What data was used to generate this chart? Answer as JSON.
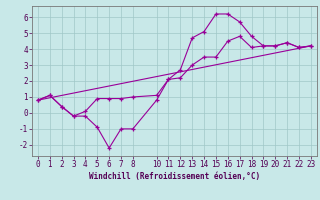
{
  "background_color": "#c8e8e8",
  "grid_color": "#a0c8c8",
  "line_color": "#990099",
  "spine_color": "#777777",
  "xlim": [
    -0.5,
    23.5
  ],
  "ylim": [
    -2.7,
    6.7
  ],
  "xticks": [
    0,
    1,
    2,
    3,
    4,
    5,
    6,
    7,
    8,
    10,
    11,
    12,
    13,
    14,
    15,
    16,
    17,
    18,
    19,
    20,
    21,
    22,
    23
  ],
  "yticks": [
    -2,
    -1,
    0,
    1,
    2,
    3,
    4,
    5,
    6
  ],
  "xlabel": "Windchill (Refroidissement éolien,°C)",
  "series1_x": [
    0,
    1,
    2,
    3,
    4,
    5,
    6,
    7,
    8,
    10,
    11,
    12,
    13,
    14,
    15,
    16,
    17,
    18,
    19,
    20,
    21,
    22,
    23
  ],
  "series1_y": [
    0.8,
    1.1,
    0.4,
    -0.2,
    -0.2,
    -0.9,
    -2.2,
    -1.0,
    -1.0,
    0.8,
    2.1,
    2.7,
    4.7,
    5.1,
    6.2,
    6.2,
    5.7,
    4.8,
    4.2,
    4.2,
    4.4,
    4.1,
    4.2
  ],
  "series2_x": [
    0,
    1,
    2,
    3,
    4,
    5,
    6,
    7,
    8,
    10,
    11,
    12,
    13,
    14,
    15,
    16,
    17,
    18,
    19,
    20,
    21,
    22,
    23
  ],
  "series2_y": [
    0.8,
    1.1,
    0.4,
    -0.2,
    0.1,
    0.9,
    0.9,
    0.9,
    1.0,
    1.1,
    2.1,
    2.2,
    3.0,
    3.5,
    3.5,
    4.5,
    4.8,
    4.1,
    4.2,
    4.2,
    4.4,
    4.1,
    4.2
  ],
  "series3_x": [
    0,
    23
  ],
  "series3_y": [
    0.8,
    4.2
  ],
  "tick_fontsize": 5.5,
  "xlabel_fontsize": 5.5
}
